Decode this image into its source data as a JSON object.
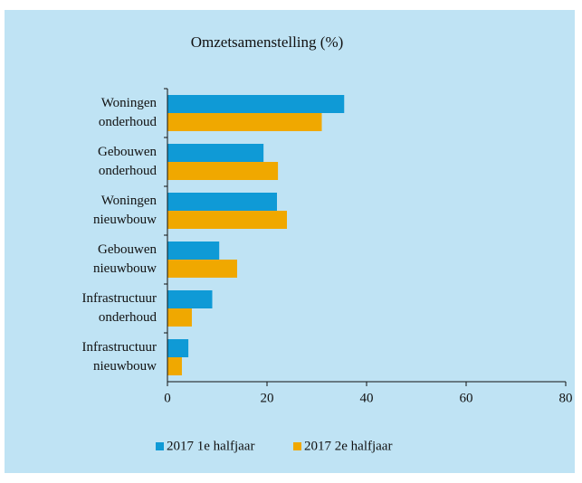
{
  "chart_data": {
    "type": "hbar",
    "title": "Omzetsamenstelling (%)",
    "categories": [
      "Woningen onderhoud",
      "Gebouwen onderhoud",
      "Woningen nieuwbouw",
      "Gebouwen nieuwbouw",
      "Infrastructuur onderhoud",
      "Infrastructuur nieuwbouw"
    ],
    "series": [
      {
        "name": "2017 1e halfjaar",
        "color": "#0f9ad6",
        "values": [
          35.5,
          19.3,
          22,
          10.4,
          9,
          4.2
        ]
      },
      {
        "name": "2017 2e halfjaar",
        "color": "#f0a800",
        "values": [
          31,
          22.2,
          24,
          14,
          4.9,
          2.9
        ]
      }
    ],
    "xlim": [
      0,
      80
    ],
    "xticks": [
      0,
      20,
      40,
      60,
      80
    ],
    "legend": "bottom"
  }
}
